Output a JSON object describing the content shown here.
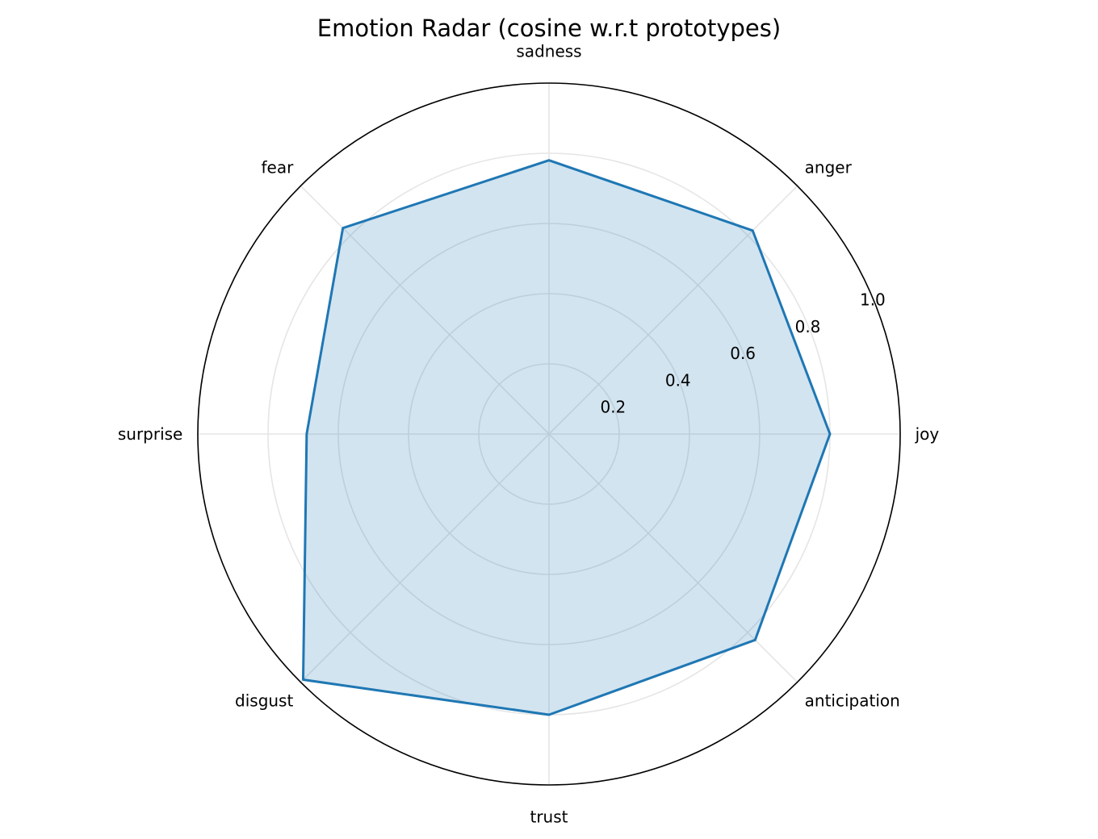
{
  "chart_data": {
    "type": "radar",
    "title": "Emotion Radar (cosine w.r.t prototypes)",
    "categories": [
      "joy",
      "anger",
      "sadness",
      "fear",
      "surprise",
      "disgust",
      "trust",
      "anticipation"
    ],
    "series": [
      {
        "values": [
          0.8,
          0.82,
          0.78,
          0.83,
          0.69,
          0.99,
          0.8,
          0.83
        ]
      }
    ],
    "rlim": [
      0,
      1.0
    ],
    "rticks": [
      0.2,
      0.4,
      0.6,
      0.8,
      1.0
    ],
    "rtick_labels": [
      "0.2",
      "0.4",
      "0.6",
      "0.8",
      "1.0"
    ],
    "grid": true,
    "colors": {
      "line": "#1f77b4",
      "fill": "#1f77b4",
      "grid": "#e5e5e5",
      "spine": "#000000"
    }
  }
}
